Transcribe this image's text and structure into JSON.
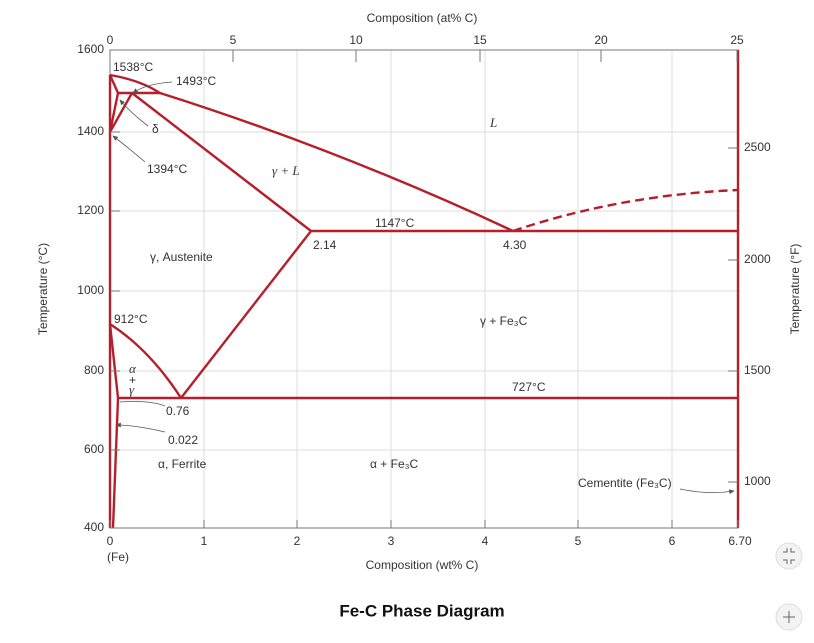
{
  "axes": {
    "top_title": "Composition (at% C)",
    "top_ticks": [
      "0",
      "5",
      "10",
      "15",
      "20",
      "25"
    ],
    "bottom_title": "Composition (wt% C)",
    "bottom_ticks": [
      "0",
      "1",
      "2",
      "3",
      "4",
      "5",
      "6",
      "6.70"
    ],
    "bottom_note": "(Fe)",
    "left_title": "Temperature (°C)",
    "left_ticks": [
      "400",
      "600",
      "800",
      "1000",
      "1200",
      "1400",
      "1600"
    ],
    "right_title": "Temperature (°F)",
    "right_ticks": [
      "1000",
      "1500",
      "2000",
      "2500"
    ]
  },
  "annotations": [
    "1538°C",
    "1493°C",
    "δ",
    "L",
    "1394°C",
    "γ + L",
    "1147°C",
    "2.14",
    "4.30",
    "γ, Austenite",
    "912°C",
    "γ + Fe₃C",
    "α",
    "+",
    "γ",
    "727°C",
    "0.76",
    "0.022",
    "α, Ferrite",
    "α + Fe₃C",
    "Cementite (Fe₃C)"
  ],
  "caption": "Fe-C Phase Diagram"
}
